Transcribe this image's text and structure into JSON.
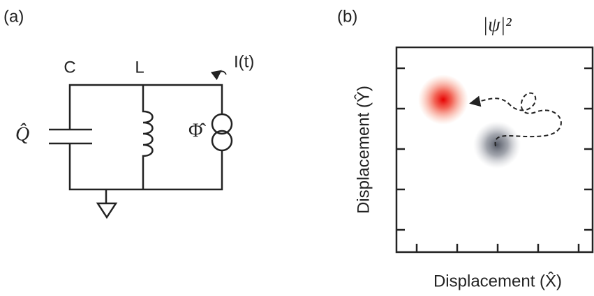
{
  "panels": {
    "a": {
      "label": "(a)",
      "capacitor_label": "C",
      "inductor_label": "L",
      "current_label": "I(t)",
      "charge_label": "Q̂",
      "flux_label": "Φ̂"
    },
    "b": {
      "label": "(b)",
      "title": "|ψ|²",
      "y_label": "Displacement (Ŷ)",
      "x_label": "Displacement (X̂)"
    }
  }
}
